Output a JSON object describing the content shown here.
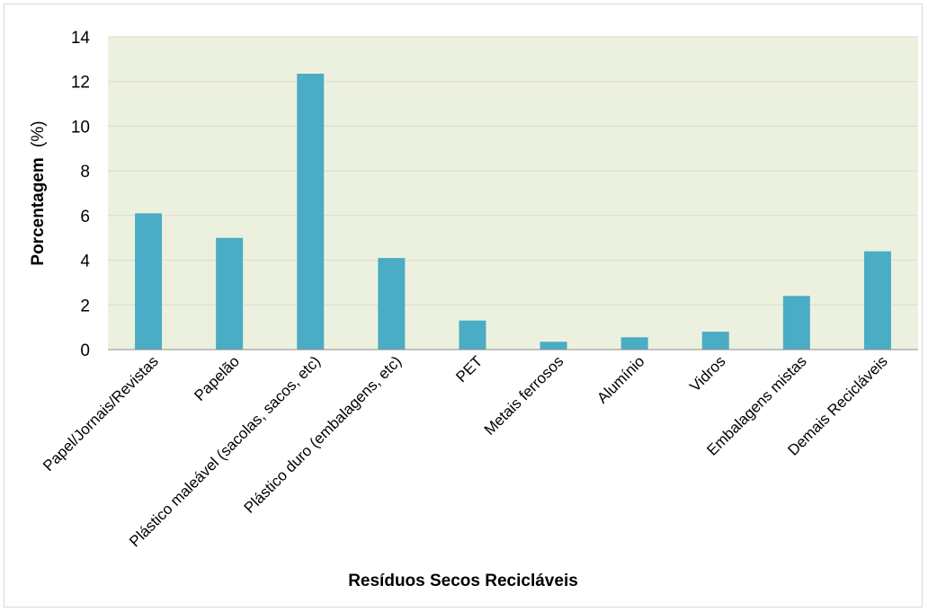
{
  "chart_data": {
    "type": "bar",
    "title": "",
    "xlabel": "Resíduos Secos Recicláveis",
    "ylabel_bold": "Porcentagem",
    "ylabel_unit": "(%)",
    "ylim": [
      0,
      14
    ],
    "yticks": [
      "0",
      "2",
      "4",
      "6",
      "8",
      "10",
      "12",
      "14"
    ],
    "grid": true,
    "categories": [
      "Papel/Jornais/Revistas",
      "Papelão",
      "Plástico maleável (sacolas, sacos, etc)",
      "Plástico duro (embalagens, etc)",
      "PET",
      "Metais ferrosos",
      "Alumínio",
      "Vidros",
      "Embalagens mistas",
      "Demais Recicláveis"
    ],
    "values": [
      6.1,
      5.0,
      12.35,
      4.1,
      1.3,
      0.35,
      0.55,
      0.8,
      2.4,
      4.4
    ],
    "colors": {
      "bar": "#4bacc6",
      "plot_bg": "#ebf1de",
      "grid": "#d9d9d9",
      "axis": "#8c8c8c"
    }
  }
}
